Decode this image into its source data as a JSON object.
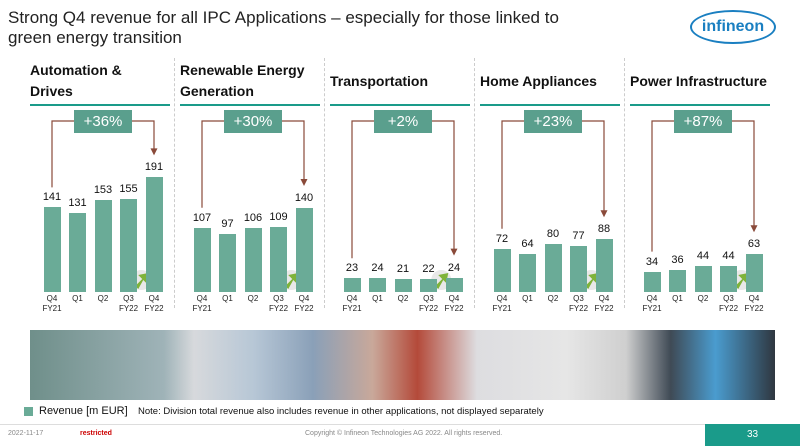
{
  "title": "Strong Q4 revenue for all IPC Applications – especially for those linked to green energy transition",
  "logo": "infineon",
  "legend": "Revenue [m EUR]",
  "note": "Note: Division total revenue also includes revenue in other applications, not displayed separately",
  "footer": {
    "date": "2022-11-17",
    "classification": "restricted",
    "copyright": "Copyright © Infineon Technologies AG 2022. All rights reserved.",
    "page": "33"
  },
  "chart_data": [
    {
      "type": "bar",
      "title": "Automation & Drives",
      "growth": "+36%",
      "color": "#6aab97",
      "categories": [
        "Q4\nFY21",
        "Q1",
        "Q2",
        "Q3\nFY22",
        "Q4\nFY22"
      ],
      "values": [
        141,
        131,
        153,
        155,
        191
      ]
    },
    {
      "type": "bar",
      "title": "Renewable Energy Generation",
      "growth": "+30%",
      "color": "#6aab97",
      "categories": [
        "Q4\nFY21",
        "Q1",
        "Q2",
        "Q3\nFY22",
        "Q4\nFY22"
      ],
      "values": [
        107,
        97,
        106,
        109,
        140
      ]
    },
    {
      "type": "bar",
      "title": "Transportation",
      "growth": "+2%",
      "color": "#6aab97",
      "categories": [
        "Q4\nFY21",
        "Q1",
        "Q2",
        "Q3\nFY22",
        "Q4\nFY22"
      ],
      "values": [
        23,
        24,
        21,
        22,
        24
      ]
    },
    {
      "type": "bar",
      "title": "Home Appliances",
      "growth": "+23%",
      "color": "#6aab97",
      "categories": [
        "Q4\nFY21",
        "Q1",
        "Q2",
        "Q3\nFY22",
        "Q4\nFY22"
      ],
      "values": [
        72,
        64,
        80,
        77,
        88
      ]
    },
    {
      "type": "bar",
      "title": "Power Infrastructure",
      "growth": "+87%",
      "color": "#6aab97",
      "categories": [
        "Q4\nFY21",
        "Q1",
        "Q2",
        "Q3\nFY22",
        "Q4\nFY22"
      ],
      "values": [
        34,
        36,
        44,
        44,
        63
      ]
    }
  ]
}
